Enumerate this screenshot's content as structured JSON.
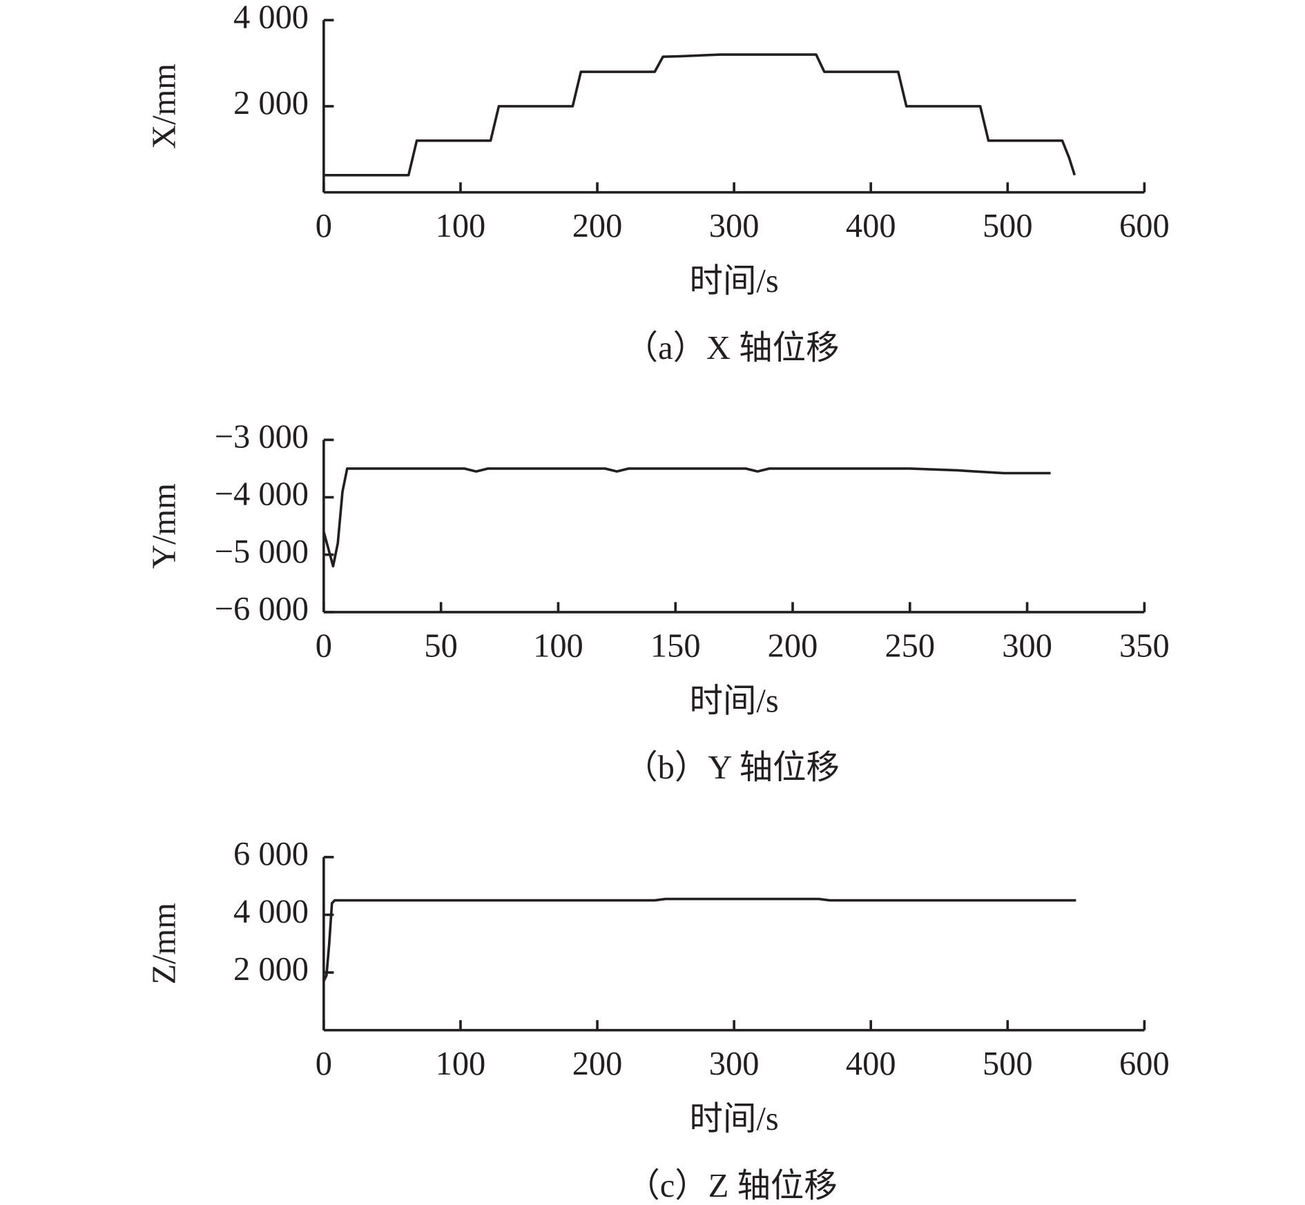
{
  "chart_data": [
    {
      "type": "line",
      "caption": "（a）X 轴位移",
      "xlabel": "时间/s",
      "ylabel": "X/mm",
      "color": "#231f20",
      "x": [
        0,
        62,
        68,
        122,
        128,
        182,
        188,
        242,
        248,
        260,
        290,
        360,
        366,
        420,
        426,
        480,
        486,
        540,
        545,
        549
      ],
      "values": [
        400,
        400,
        1200,
        1200,
        2000,
        2000,
        2800,
        2800,
        3150,
        3160,
        3200,
        3200,
        2800,
        2800,
        2000,
        2000,
        1200,
        1200,
        800,
        400
      ],
      "xlim": [
        0,
        600
      ],
      "xticks": [
        0,
        100,
        200,
        300,
        400,
        500,
        600
      ],
      "ylim": [
        0,
        4000
      ],
      "yticks": [
        {
          "value": 2000,
          "label": "2 000"
        },
        {
          "value": 4000,
          "label": "4 000"
        }
      ]
    },
    {
      "type": "line",
      "caption": "（b）Y 轴位移",
      "xlabel": "时间/s",
      "ylabel": "Y/mm",
      "color": "#231f20",
      "x": [
        0,
        2,
        4,
        6,
        8,
        10,
        60,
        65,
        70,
        120,
        125,
        130,
        180,
        185,
        190,
        250,
        270,
        290,
        310
      ],
      "values": [
        -4600,
        -4900,
        -5200,
        -4800,
        -3900,
        -3500,
        -3500,
        -3550,
        -3500,
        -3500,
        -3550,
        -3500,
        -3500,
        -3550,
        -3500,
        -3500,
        -3530,
        -3580,
        -3580
      ],
      "xlim": [
        0,
        350
      ],
      "xticks": [
        0,
        50,
        100,
        150,
        200,
        250,
        300,
        350
      ],
      "ylim": [
        -6000,
        -3000
      ],
      "yticks": [
        {
          "value": -6000,
          "label": "−6 000"
        },
        {
          "value": -5000,
          "label": "−5 000"
        },
        {
          "value": -4000,
          "label": "−4 000"
        },
        {
          "value": -3000,
          "label": "−3 000"
        }
      ]
    },
    {
      "type": "line",
      "caption": "（c）Z 轴位移",
      "xlabel": "时间/s",
      "ylabel": "Z/mm",
      "color": "#231f20",
      "x": [
        0,
        2,
        4,
        6,
        8,
        242,
        250,
        362,
        370,
        550
      ],
      "values": [
        1700,
        1900,
        3000,
        4400,
        4500,
        4500,
        4550,
        4550,
        4500,
        4500
      ],
      "xlim": [
        0,
        600
      ],
      "xticks": [
        0,
        100,
        200,
        300,
        400,
        500,
        600
      ],
      "ylim": [
        0,
        6000
      ],
      "yticks": [
        {
          "value": 2000,
          "label": "2 000"
        },
        {
          "value": 4000,
          "label": "4 000"
        },
        {
          "value": 6000,
          "label": "6 000"
        }
      ]
    }
  ]
}
